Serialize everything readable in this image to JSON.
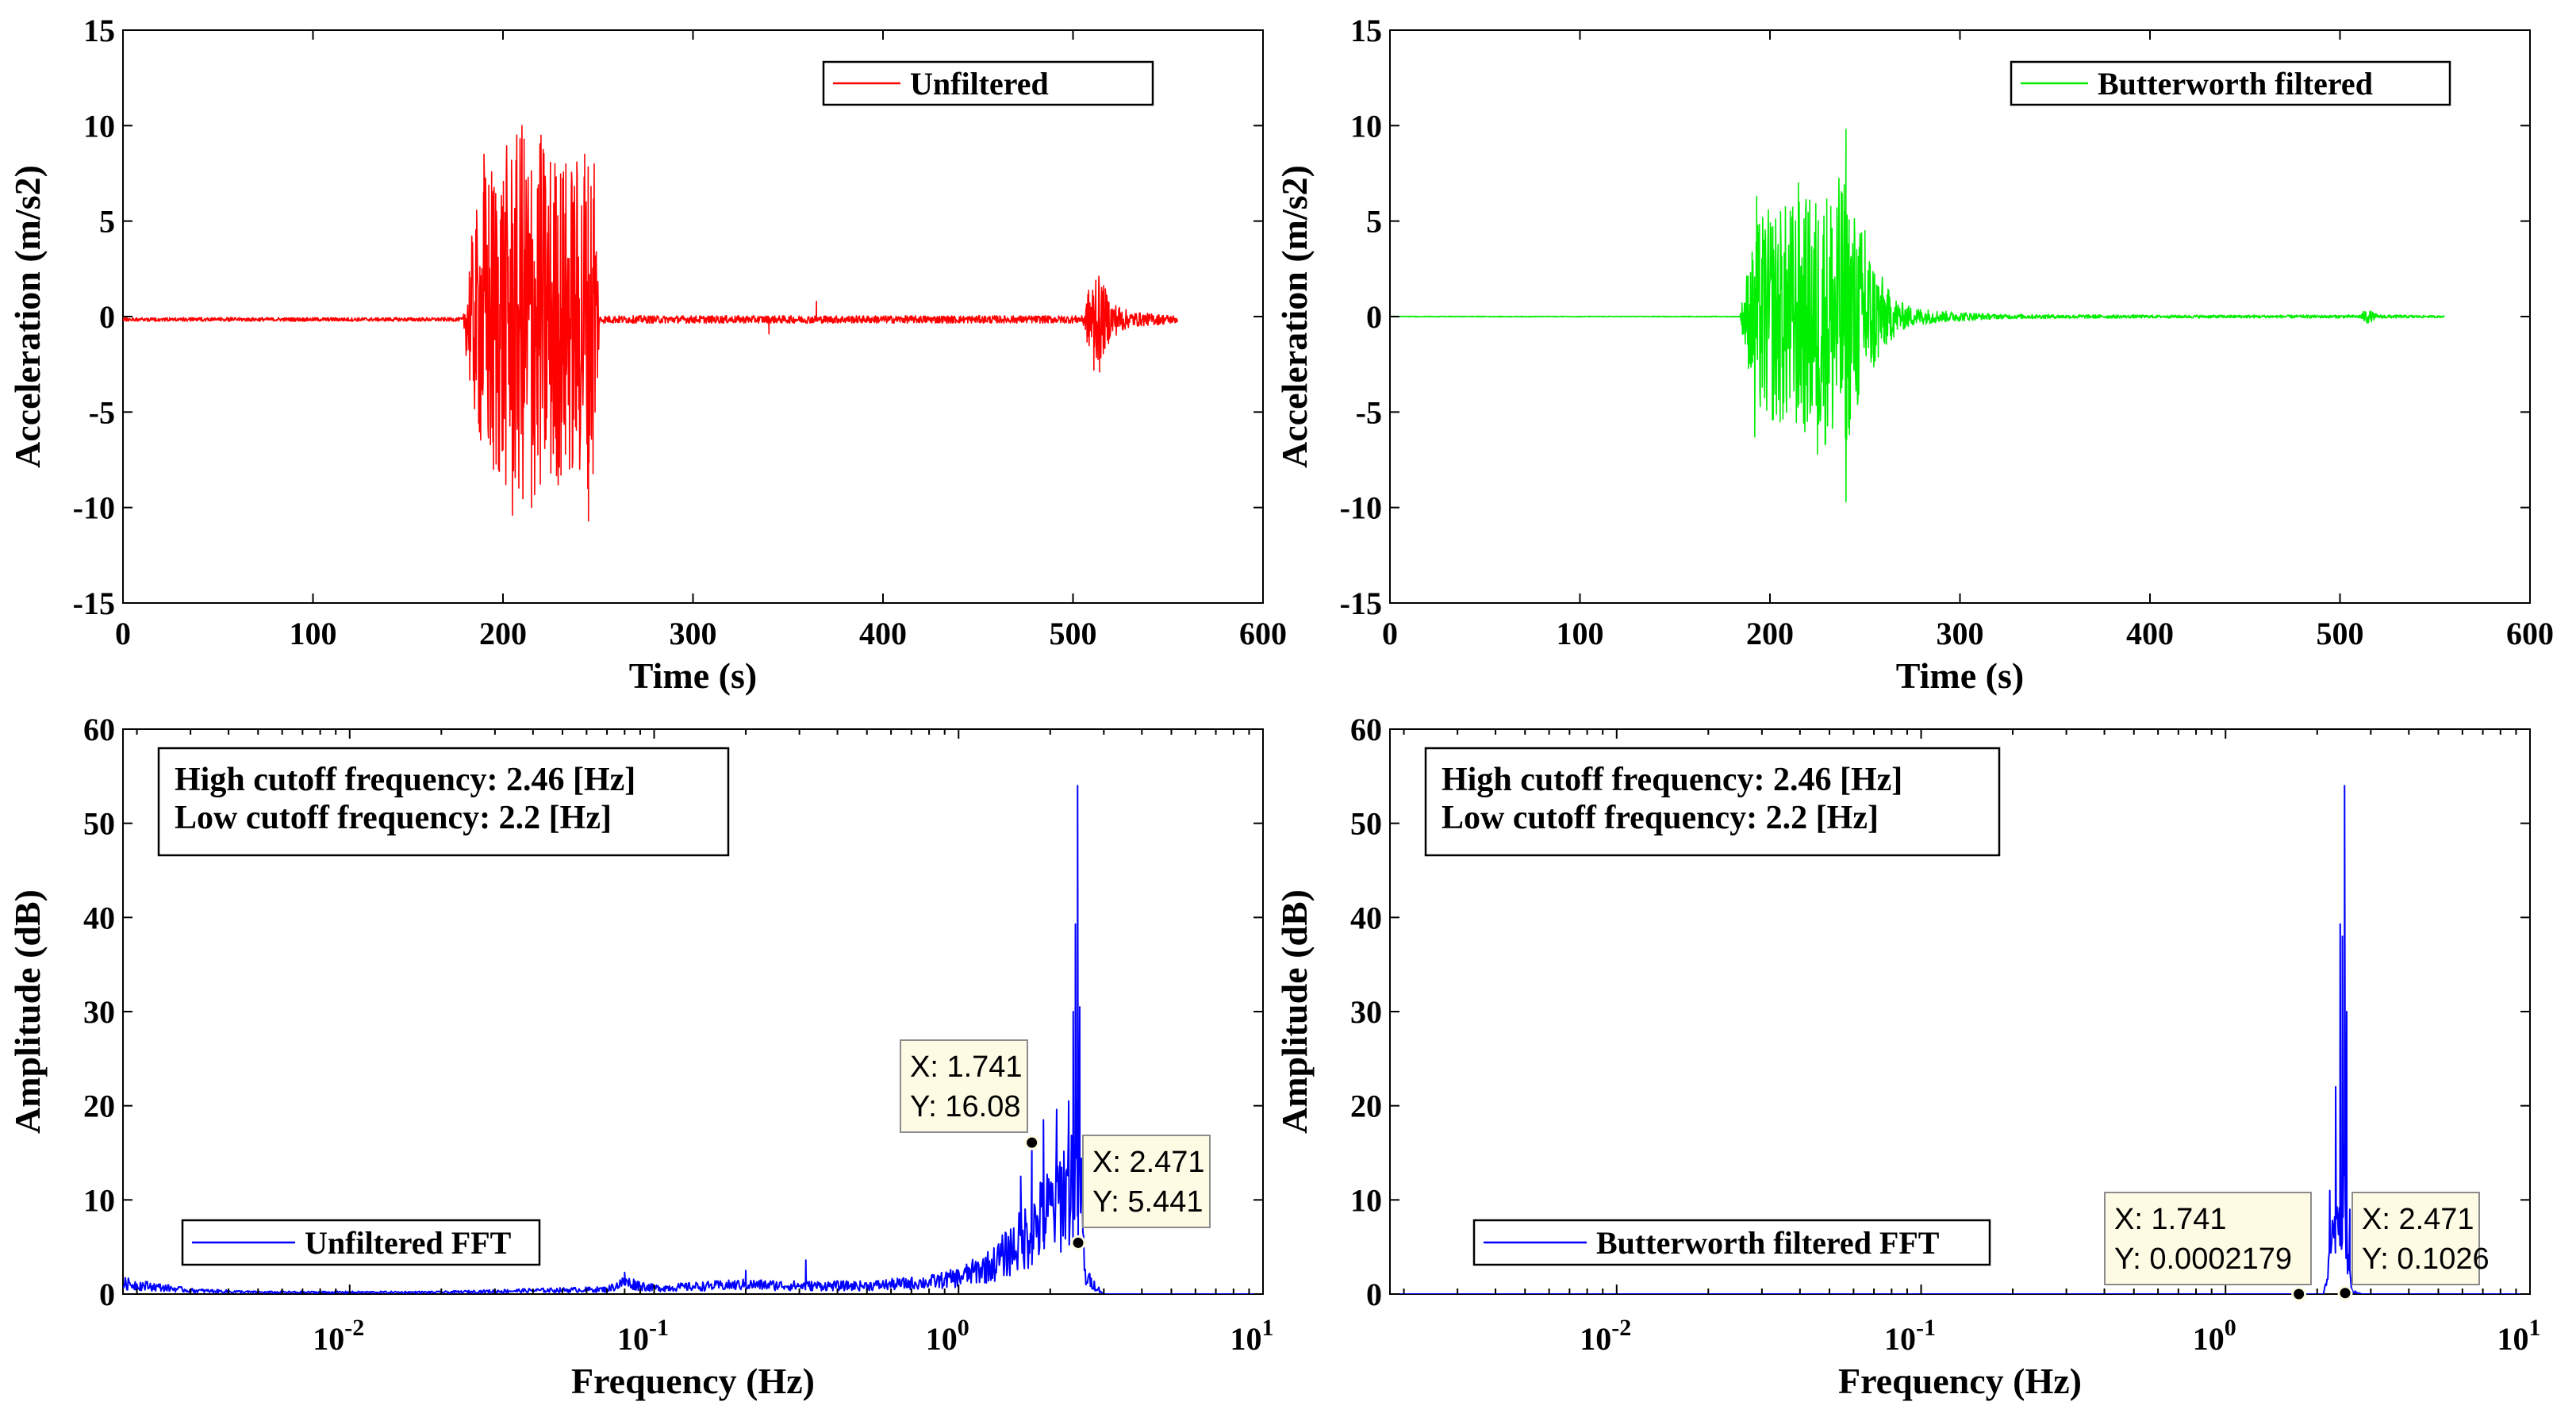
{
  "colors": {
    "unfiltered": "#ff0000",
    "filtered": "#00ee00",
    "fft": "#0000ff",
    "tip_fill": "#fdfbe4"
  },
  "chart_data": [
    {
      "id": "time_unfiltered",
      "type": "line",
      "xlabel": "Time (s)",
      "ylabel": "Acceleration (m/s2)",
      "xlim": [
        0,
        600
      ],
      "ylim": [
        -15,
        15
      ],
      "xticks": [
        0,
        100,
        200,
        300,
        400,
        500,
        600
      ],
      "yticks": [
        -15,
        -10,
        -5,
        0,
        5,
        10,
        15
      ],
      "grid": false,
      "legend_position": "top-right",
      "series": [
        {
          "name": "Unfiltered",
          "color": "#ff0000",
          "duration": 555,
          "baseline": -0.15,
          "envelope": [
            [
              0,
              0.1
            ],
            [
              179,
              0.1
            ],
            [
              182,
              3.5
            ],
            [
              190,
              8.0
            ],
            [
              200,
              9.0
            ],
            [
              210,
              10.0
            ],
            [
              220,
              9.5
            ],
            [
              235,
              8.5
            ],
            [
              248,
              9.0
            ],
            [
              251,
              0.2
            ],
            [
              505,
              0.2
            ],
            [
              509,
              2.0
            ],
            [
              514,
              2.3
            ],
            [
              520,
              1.0
            ],
            [
              530,
              0.4
            ],
            [
              555,
              0.2
            ]
          ],
          "peaks": [
            [
              190,
              8.5
            ],
            [
              195,
              -8.0
            ],
            [
              205,
              -10.4
            ],
            [
              210,
              10.0
            ],
            [
              215,
              -10.0
            ],
            [
              220,
              9.5
            ],
            [
              243,
              8.5
            ],
            [
              245,
              -10.7
            ],
            [
              248,
              8.0
            ],
            [
              340,
              -0.9
            ],
            [
              365,
              0.8
            ],
            [
              512,
              1.9
            ],
            [
              511,
              -2.8
            ],
            [
              514,
              -2.9
            ]
          ]
        }
      ]
    },
    {
      "id": "time_filtered",
      "type": "line",
      "xlabel": "Time (s)",
      "ylabel": "Acceleration (m/s2)",
      "xlim": [
        0,
        600
      ],
      "ylim": [
        -15,
        15
      ],
      "xticks": [
        0,
        100,
        200,
        300,
        400,
        500,
        600
      ],
      "yticks": [
        -15,
        -10,
        -5,
        0,
        5,
        10,
        15
      ],
      "grid": false,
      "legend_position": "top-right",
      "series": [
        {
          "name": "Butterworth filtered",
          "color": "#00ee00",
          "duration": 555,
          "baseline": 0,
          "envelope": [
            [
              0,
              0.02
            ],
            [
              184,
              0.02
            ],
            [
              188,
              2.5
            ],
            [
              195,
              5.5
            ],
            [
              210,
              6.0
            ],
            [
              225,
              6.5
            ],
            [
              238,
              7.5
            ],
            [
              245,
              5.5
            ],
            [
              255,
              3.0
            ],
            [
              262,
              1.5
            ],
            [
              268,
              0.8
            ],
            [
              275,
              0.5
            ],
            [
              290,
              0.3
            ],
            [
              320,
              0.12
            ],
            [
              400,
              0.08
            ],
            [
              510,
              0.08
            ],
            [
              514,
              0.4
            ],
            [
              520,
              0.1
            ],
            [
              555,
              0.05
            ]
          ],
          "peaks": [
            [
              193,
              6.3
            ],
            [
              192,
              -6.3
            ],
            [
              215,
              7.0
            ],
            [
              225,
              -7.2
            ],
            [
              240,
              9.8
            ],
            [
              240,
              -9.7
            ],
            [
              250,
              4.5
            ]
          ]
        }
      ]
    },
    {
      "id": "fft_unfiltered",
      "type": "line",
      "xlabel": "Frequency (Hz)",
      "ylabel": "Amplitude (dB)",
      "xscale": "log",
      "xlim": [
        0.0018,
        10
      ],
      "ylim": [
        0,
        60
      ],
      "xticks": [
        0.01,
        0.1,
        1,
        10
      ],
      "xtick_labels": [
        "10",
        "10",
        "10",
        "10"
      ],
      "xtick_exponents": [
        "-2",
        "-1",
        "0",
        "1"
      ],
      "yticks": [
        0,
        10,
        20,
        30,
        40,
        50,
        60
      ],
      "grid": false,
      "legend_position": "bottom-left",
      "annotation": [
        "High cutoff frequency: 2.46 [Hz]",
        "Low cutoff frequency: 2.2 [Hz]"
      ],
      "series": [
        {
          "name": "Unfiltered FFT",
          "color": "#0000ff",
          "profile": [
            [
              0.0018,
              1.8
            ],
            [
              0.003,
              0.6
            ],
            [
              0.005,
              0.3
            ],
            [
              0.01,
              0.3
            ],
            [
              0.02,
              0.3
            ],
            [
              0.04,
              0.6
            ],
            [
              0.07,
              0.8
            ],
            [
              0.08,
              2.0
            ],
            [
              0.1,
              1.0
            ],
            [
              0.2,
              1.6
            ],
            [
              0.3,
              1.4
            ],
            [
              0.5,
              1.4
            ],
            [
              0.8,
              2.0
            ],
            [
              1.0,
              2.8
            ],
            [
              1.3,
              5.0
            ],
            [
              1.6,
              9.0
            ],
            [
              2.0,
              14.0
            ],
            [
              2.3,
              19.0
            ],
            [
              2.5,
              22.0
            ],
            [
              2.6,
              3.0
            ],
            [
              3.0,
              0.0
            ],
            [
              10,
              0.0
            ]
          ],
          "peaks": [
            [
              0.08,
              2.3
            ],
            [
              0.2,
              2.5
            ],
            [
              0.315,
              3.6
            ],
            [
              1.6,
              12.5
            ],
            [
              1.741,
              16.08
            ],
            [
              1.9,
              18.5
            ],
            [
              2.1,
              19.6
            ],
            [
              2.3,
              20.5
            ],
            [
              2.38,
              30.0
            ],
            [
              2.42,
              39.3
            ],
            [
              2.46,
              54.0
            ],
            [
              2.5,
              30.5
            ],
            [
              2.471,
              5.441
            ]
          ]
        }
      ],
      "datatips": [
        {
          "x": 1.741,
          "y": 16.08,
          "x_label": "X: 1.741",
          "y_label": "Y: 16.08"
        },
        {
          "x": 2.471,
          "y": 5.441,
          "x_label": "X: 2.471",
          "y_label": "Y: 5.441"
        }
      ]
    },
    {
      "id": "fft_filtered",
      "type": "line",
      "xlabel": "Frequency (Hz)",
      "ylabel": "Amplitude (dB)",
      "xscale": "log",
      "xlim": [
        0.0018,
        10
      ],
      "ylim": [
        0,
        60
      ],
      "xticks": [
        0.01,
        0.1,
        1,
        10
      ],
      "xtick_labels": [
        "10",
        "10",
        "10",
        "10"
      ],
      "xtick_exponents": [
        "-2",
        "-1",
        "0",
        "1"
      ],
      "yticks": [
        0,
        10,
        20,
        30,
        40,
        50,
        60
      ],
      "grid": false,
      "legend_position": "bottom-left",
      "annotation": [
        "High cutoff frequency: 2.46 [Hz]",
        "Low cutoff frequency: 2.2 [Hz]"
      ],
      "series": [
        {
          "name": "Butterworth filtered FFT",
          "color": "#0000ff",
          "profile": [
            [
              0.0018,
              0.0
            ],
            [
              2.1,
              0.0
            ],
            [
              2.18,
              4.0
            ],
            [
              2.3,
              12.0
            ],
            [
              2.45,
              20.0
            ],
            [
              2.52,
              6.0
            ],
            [
              2.6,
              0.5
            ],
            [
              2.8,
              0.0
            ],
            [
              10,
              0.0
            ]
          ],
          "peaks": [
            [
              2.2,
              11.0
            ],
            [
              2.3,
              22.0
            ],
            [
              2.38,
              39.3
            ],
            [
              2.42,
              38.0
            ],
            [
              2.46,
              54.0
            ],
            [
              2.5,
              30.0
            ],
            [
              2.56,
              9.0
            ]
          ]
        }
      ],
      "datatips": [
        {
          "x": 1.741,
          "y": 0.0002179,
          "x_label": "X: 1.741",
          "y_label": "Y: 0.0002179"
        },
        {
          "x": 2.471,
          "y": 0.1026,
          "x_label": "X: 2.471",
          "y_label": "Y: 0.1026"
        }
      ]
    }
  ]
}
